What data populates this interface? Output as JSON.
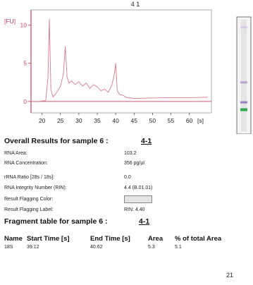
{
  "chart_data": {
    "type": "line",
    "title": "4 1",
    "ylabel": "[FU]",
    "xlabel": "[s]",
    "xlim": [
      17,
      66
    ],
    "ylim": [
      -1.5,
      12
    ],
    "xticks": [
      20,
      25,
      30,
      35,
      40,
      45,
      50,
      55,
      60
    ],
    "yticks": [
      0,
      5,
      10
    ],
    "series": [
      {
        "color": "#d67a8e",
        "x": [
          17,
          19,
          21,
          21.6,
          22,
          22.4,
          23,
          24,
          25,
          25.8,
          26.3,
          26.8,
          27.3,
          28,
          29,
          30,
          31,
          32,
          33,
          34,
          35,
          36,
          37,
          38,
          39,
          39.6,
          40,
          40.4,
          41,
          42,
          43,
          45,
          50,
          55,
          60,
          65
        ],
        "y": [
          0,
          0,
          0.1,
          3,
          10.8,
          1.5,
          0.6,
          1.2,
          2.0,
          3.6,
          7.2,
          3.2,
          2.4,
          2.7,
          2.2,
          2.6,
          2.0,
          2.4,
          1.7,
          2.2,
          1.9,
          1.4,
          1.6,
          1.2,
          2.2,
          3.5,
          5.0,
          1.5,
          0.9,
          0.8,
          0.5,
          0.4,
          0.45,
          0.5,
          0.5,
          0.55
        ]
      }
    ]
  },
  "gel": {
    "band_colors": [
      "#d9cce8",
      "#b9a2d6",
      "#9b7fc4",
      "#2fa84f"
    ],
    "band_levels": [
      0.08,
      0.55,
      0.72,
      0.78
    ]
  },
  "overall": {
    "title": "Overall Results for sample 6  :",
    "sample": "4-1",
    "rows": [
      {
        "label": "RNA Area:",
        "value": "103.2"
      },
      {
        "label": "RNA Concentration:",
        "value": "356 pg/µl"
      },
      {
        "label": "rRNA Ratio [28s / 18s]:",
        "value": "0.0"
      },
      {
        "label": "RNA Integrity Number (RIN):",
        "value": "4.4  (B.01.01)"
      },
      {
        "label": "Result Flagging Color:",
        "value": ""
      },
      {
        "label": "Result Flagging Label:",
        "value": "RIN: 4.40"
      }
    ]
  },
  "fragment": {
    "title": "Fragment table for sample 6  :",
    "sample": "4-1",
    "headers": [
      "Name",
      "Start Time [s]",
      "End Time [s]",
      "Area",
      "% of total Area"
    ],
    "row": [
      "18S",
      "39.12",
      "40.62",
      "5.3",
      "5.1"
    ]
  },
  "page_number": "21"
}
